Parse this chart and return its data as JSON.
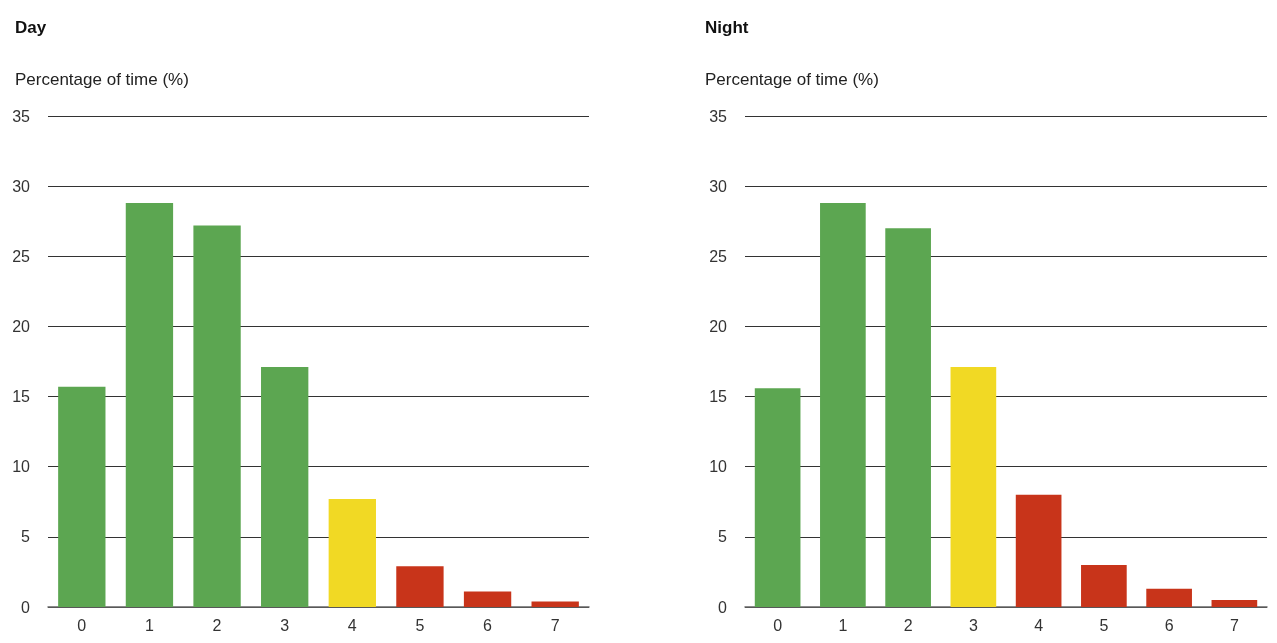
{
  "chart_data": [
    {
      "type": "bar",
      "title": "Day",
      "ylabel": "Percentage of time (%)",
      "categories": [
        "0",
        "1",
        "2",
        "3",
        "4",
        "5",
        "6",
        "7"
      ],
      "values": [
        15.7,
        28.8,
        27.2,
        17.1,
        7.7,
        2.9,
        1.1,
        0.4
      ],
      "colors": [
        "#5ca651",
        "#5ca651",
        "#5ca651",
        "#5ca651",
        "#f1d924",
        "#c8341a",
        "#c8341a",
        "#c8341a"
      ],
      "ylim": [
        0,
        35
      ],
      "yticks": [
        0,
        5,
        10,
        15,
        20,
        25,
        30,
        35
      ],
      "grid": "y"
    },
    {
      "type": "bar",
      "title": "Night",
      "ylabel": "Percentage of time (%)",
      "categories": [
        "0",
        "1",
        "2",
        "3",
        "4",
        "5",
        "6",
        "7"
      ],
      "values": [
        15.6,
        28.8,
        27.0,
        17.1,
        8.0,
        3.0,
        1.3,
        0.5
      ],
      "colors": [
        "#5ca651",
        "#5ca651",
        "#5ca651",
        "#f1d924",
        "#c8341a",
        "#c8341a",
        "#c8341a",
        "#c8341a"
      ],
      "ylim": [
        0,
        35
      ],
      "yticks": [
        0,
        5,
        10,
        15,
        20,
        25,
        30,
        35
      ],
      "grid": "y"
    }
  ]
}
